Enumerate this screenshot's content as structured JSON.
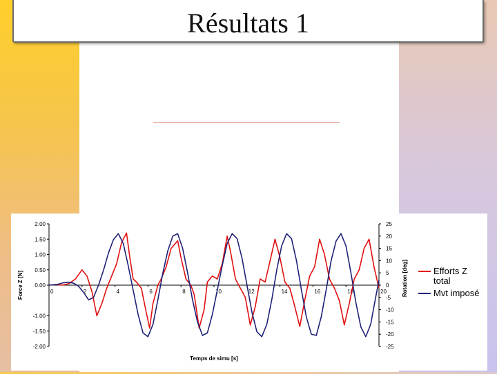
{
  "slide": {
    "title": "Résultats 1"
  },
  "colors": {
    "series_force": "#e01010",
    "series_rotation": "#1f2277",
    "axis": "#000000"
  },
  "chart_data": {
    "type": "line",
    "title": "",
    "xlabel": "Temps de simu [s]",
    "ylabel": "Force Z [N]",
    "y2label": "Rotation [deg]",
    "xlim": [
      0,
      20
    ],
    "ylim": [
      -2,
      2
    ],
    "y2lim": [
      -25,
      25
    ],
    "x_ticks": [
      0,
      2,
      4,
      6,
      8,
      10,
      12,
      14,
      16,
      18,
      20
    ],
    "y_ticks": [
      "2.00",
      "1.50",
      "1.00",
      "0.50",
      "0.00",
      "-1.00",
      "-1.50",
      "-2.00"
    ],
    "y_tick_values": [
      2.0,
      1.5,
      1.0,
      0.5,
      0.0,
      -1.0,
      -1.5,
      -2.0
    ],
    "y2_ticks": [
      25,
      20,
      15,
      10,
      5,
      0,
      -5,
      -10,
      -15,
      -20,
      -25
    ],
    "grid": false,
    "legend_position": "right",
    "series": [
      {
        "name": "Efforts Z total",
        "axis": "left",
        "x": [
          0,
          0.4,
          0.8,
          1.2,
          1.6,
          2.0,
          2.3,
          2.6,
          2.9,
          3.2,
          3.5,
          3.8,
          4.1,
          4.4,
          4.7,
          4.9,
          5.1,
          5.3,
          5.6,
          5.9,
          6.1,
          6.3,
          6.6,
          6.8,
          7.1,
          7.4,
          7.8,
          8.0,
          8.3,
          8.6,
          8.8,
          9.1,
          9.4,
          9.6,
          9.9,
          10.2,
          10.5,
          10.8,
          11.0,
          11.3,
          11.6,
          11.9,
          12.2,
          12.5,
          12.8,
          13.1,
          13.4,
          13.7,
          14.0,
          14.3,
          14.6,
          14.9,
          15.2,
          15.5,
          15.8,
          16.1,
          16.4,
          16.7,
          17.0,
          17.3,
          17.6,
          17.9,
          18.2,
          18.5,
          18.8,
          19.1,
          19.4,
          19.7,
          20.0
        ],
        "values": [
          0.0,
          0.02,
          0.0,
          0.05,
          0.2,
          0.5,
          0.3,
          -0.2,
          -1.0,
          -0.6,
          -0.1,
          0.3,
          0.7,
          1.4,
          1.7,
          0.9,
          0.2,
          0.1,
          -0.1,
          -0.9,
          -1.4,
          -0.6,
          0.0,
          0.2,
          0.6,
          1.2,
          1.45,
          0.9,
          0.2,
          0.0,
          -0.3,
          -1.4,
          -0.8,
          0.1,
          0.3,
          0.2,
          0.7,
          1.6,
          1.1,
          0.2,
          -0.1,
          -0.4,
          -1.3,
          -0.7,
          0.2,
          0.1,
          0.8,
          1.5,
          0.9,
          0.1,
          -0.1,
          -0.7,
          -1.35,
          -0.5,
          0.3,
          0.6,
          1.5,
          1.0,
          0.2,
          -0.1,
          -0.5,
          -1.3,
          -0.6,
          0.2,
          0.5,
          1.2,
          1.5,
          0.6,
          -0.1
        ]
      },
      {
        "name": "Mvt imposé",
        "axis": "right",
        "x": [
          0,
          0.5,
          0.9,
          1.2,
          1.5,
          1.8,
          2.1,
          2.4,
          2.7,
          3.0,
          3.3,
          3.6,
          3.9,
          4.2,
          4.5,
          4.8,
          5.1,
          5.4,
          5.7,
          6.0,
          6.3,
          6.6,
          6.9,
          7.2,
          7.5,
          7.8,
          8.1,
          8.4,
          8.7,
          9.0,
          9.3,
          9.6,
          9.9,
          10.2,
          10.5,
          10.8,
          11.1,
          11.4,
          11.7,
          12.0,
          12.3,
          12.6,
          12.9,
          13.2,
          13.5,
          13.8,
          14.1,
          14.4,
          14.7,
          15.0,
          15.3,
          15.6,
          15.9,
          16.2,
          16.5,
          16.8,
          17.1,
          17.4,
          17.7,
          18.0,
          18.3,
          18.6,
          18.9,
          19.2,
          19.5,
          19.8,
          20.0
        ],
        "values": [
          0,
          0.3,
          1.0,
          1.2,
          0.8,
          -0.5,
          -3.0,
          -6.0,
          -5.0,
          0.0,
          6.0,
          13.0,
          18.5,
          21.0,
          17.0,
          8.0,
          -2.0,
          -12.0,
          -19.5,
          -21.0,
          -16.0,
          -6.0,
          5.0,
          14.0,
          20.0,
          21.0,
          15.0,
          5.0,
          -6.0,
          -15.0,
          -20.5,
          -19.5,
          -12.0,
          -2.0,
          8.0,
          17.0,
          21.0,
          19.0,
          11.0,
          0.0,
          -11.0,
          -19.0,
          -21.0,
          -16.0,
          -6.0,
          6.0,
          16.0,
          21.0,
          19.0,
          10.0,
          -2.0,
          -13.0,
          -20.0,
          -20.5,
          -13.0,
          -2.0,
          10.0,
          18.0,
          21.0,
          16.0,
          5.0,
          -7.0,
          -17.0,
          -21.0,
          -16.0,
          -5.0,
          2.0
        ]
      }
    ]
  }
}
